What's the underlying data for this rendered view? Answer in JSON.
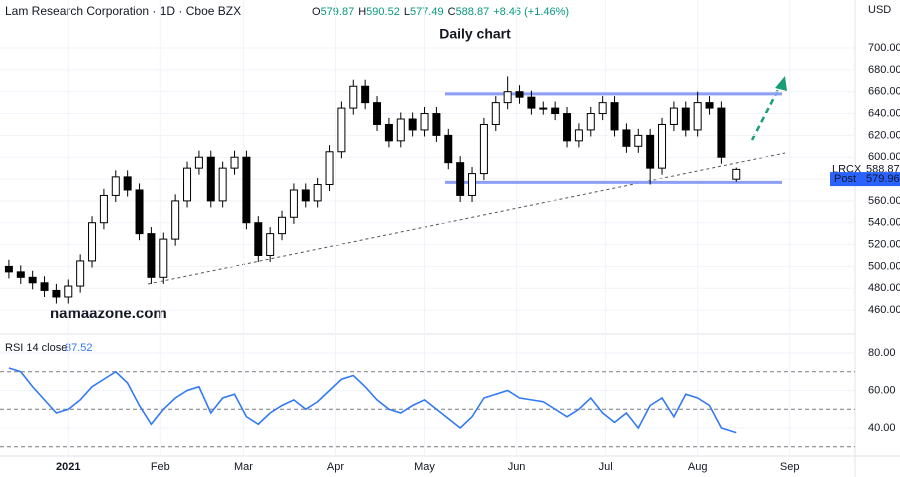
{
  "chart_data": [
    {
      "type": "candlestick",
      "title": "Lam Research Corporation · 1D · Cboe BZX",
      "ohlc_labels": [
        "O",
        "H",
        "L",
        "C"
      ],
      "change": "+8.46 (+1.46%)",
      "annotation": "Daily chart",
      "watermark": "namaazone.com",
      "currency": "USD",
      "symbol": "LRCX",
      "post": {
        "label": "Post",
        "value": 579.96
      },
      "levels": [
        658,
        577
      ],
      "level_color": "#8c9ef5",
      "up_color": "#ffffff",
      "down_color": "#000000",
      "x": [
        -19,
        -15,
        -11,
        -7,
        -3,
        1,
        5,
        9,
        13,
        17,
        21,
        25,
        29,
        33,
        37,
        41,
        45,
        49,
        53,
        57,
        61,
        65,
        69,
        73,
        77,
        81,
        85,
        89,
        93,
        97,
        101,
        105,
        109,
        113,
        117,
        121,
        125,
        129,
        133,
        137,
        141,
        145,
        149,
        153,
        157,
        161,
        165,
        169,
        173,
        177,
        181,
        185,
        189,
        193,
        197,
        201,
        205,
        209,
        213,
        217,
        221,
        226
      ],
      "open": [
        500,
        495,
        490,
        485,
        478,
        472,
        482,
        505,
        540,
        565,
        582,
        570,
        530,
        490,
        525,
        560,
        590,
        600,
        560,
        590,
        600,
        540,
        510,
        530,
        545,
        570,
        560,
        575,
        605,
        645,
        665,
        650,
        630,
        615,
        635,
        625,
        640,
        620,
        595,
        565,
        585,
        630,
        650,
        660,
        655,
        645,
        645,
        640,
        615,
        625,
        640,
        650,
        625,
        610,
        620,
        590,
        630,
        645,
        625,
        650,
        645,
        579.87
      ],
      "high": [
        506,
        501,
        496,
        491,
        484,
        488,
        511,
        546,
        571,
        588,
        588,
        576,
        536,
        531,
        566,
        596,
        606,
        606,
        596,
        606,
        606,
        546,
        536,
        551,
        576,
        576,
        581,
        611,
        651,
        671,
        671,
        656,
        636,
        641,
        641,
        646,
        646,
        626,
        601,
        591,
        636,
        656,
        674,
        666,
        661,
        651,
        651,
        646,
        631,
        646,
        656,
        656,
        631,
        626,
        626,
        636,
        651,
        651,
        660,
        656,
        651,
        590.52
      ],
      "low": [
        489,
        484,
        479,
        472,
        466,
        466,
        476,
        499,
        534,
        559,
        564,
        524,
        484,
        484,
        519,
        554,
        584,
        554,
        554,
        584,
        534,
        504,
        504,
        524,
        539,
        554,
        554,
        569,
        599,
        639,
        644,
        624,
        609,
        609,
        619,
        619,
        614,
        589,
        559,
        559,
        579,
        624,
        644,
        649,
        639,
        639,
        634,
        609,
        609,
        619,
        634,
        619,
        604,
        604,
        575,
        584,
        624,
        619,
        619,
        639,
        594,
        577.49
      ],
      "close": [
        495,
        490,
        485,
        478,
        472,
        482,
        505,
        540,
        565,
        582,
        570,
        530,
        490,
        525,
        560,
        590,
        600,
        560,
        590,
        600,
        540,
        510,
        530,
        545,
        570,
        560,
        575,
        605,
        645,
        665,
        650,
        630,
        615,
        635,
        625,
        640,
        620,
        595,
        565,
        585,
        630,
        650,
        660,
        655,
        645,
        645,
        640,
        615,
        625,
        640,
        650,
        625,
        610,
        620,
        590,
        630,
        645,
        625,
        650,
        645,
        600,
        588.87
      ],
      "xlim": [
        -22,
        266
      ],
      "xticks": [
        {
          "value": 1,
          "label": "2021"
        },
        {
          "value": 32,
          "label": "Feb"
        },
        {
          "value": 60,
          "label": "Mar"
        },
        {
          "value": 91,
          "label": "Apr"
        },
        {
          "value": 121,
          "label": "May"
        },
        {
          "value": 152,
          "label": "Jun"
        },
        {
          "value": 182,
          "label": "Jul"
        },
        {
          "value": 213,
          "label": "Aug"
        },
        {
          "value": 244,
          "label": "Sep"
        }
      ],
      "ylim": [
        439,
        744
      ],
      "yticks": [
        {
          "value": 460,
          "label": "460.00"
        },
        {
          "value": 480,
          "label": "480.00"
        },
        {
          "value": 500,
          "label": "500.00"
        },
        {
          "value": 520,
          "label": "520.00"
        },
        {
          "value": 540,
          "label": "540.00"
        },
        {
          "value": 560,
          "label": "560.00"
        },
        {
          "value": 580,
          "label": "580.00"
        },
        {
          "value": 600,
          "label": "600.00"
        },
        {
          "value": 620,
          "label": "620.00"
        },
        {
          "value": 640,
          "label": "640.00"
        },
        {
          "value": 660,
          "label": "660.00"
        },
        {
          "value": 680,
          "label": "680.00"
        },
        {
          "value": 700,
          "label": "700.00"
        }
      ]
    },
    {
      "type": "line",
      "title": "RSI 14 close",
      "last_label": "37.52",
      "color": "#3179f5",
      "x": [
        -19,
        -15,
        -11,
        -7,
        -3,
        1,
        5,
        9,
        13,
        17,
        21,
        25,
        29,
        33,
        37,
        41,
        45,
        49,
        53,
        57,
        61,
        65,
        69,
        73,
        77,
        81,
        85,
        89,
        93,
        97,
        101,
        105,
        109,
        113,
        117,
        121,
        125,
        129,
        133,
        137,
        141,
        145,
        149,
        153,
        157,
        161,
        165,
        169,
        173,
        177,
        181,
        185,
        189,
        193,
        197,
        201,
        205,
        209,
        213,
        217,
        221,
        226
      ],
      "values": [
        72,
        70,
        62,
        55,
        48,
        50,
        55,
        62,
        66,
        70,
        64,
        52,
        42,
        50,
        56,
        60,
        62,
        48,
        56,
        58,
        46,
        42,
        48,
        52,
        55,
        50,
        54,
        60,
        66,
        68,
        62,
        55,
        50,
        48,
        52,
        55,
        50,
        45,
        40,
        46,
        56,
        58,
        60,
        56,
        55,
        54,
        50,
        46,
        50,
        56,
        48,
        43,
        48,
        40,
        52,
        56,
        46,
        58,
        56,
        52,
        40,
        37.52
      ],
      "bands": [
        30,
        50,
        70
      ],
      "ylim": [
        25.6,
        89.6
      ],
      "yticks": [
        {
          "value": 40,
          "label": "40.00"
        },
        {
          "value": 60,
          "label": "60.00"
        },
        {
          "value": 80,
          "label": "80.00"
        }
      ]
    }
  ]
}
